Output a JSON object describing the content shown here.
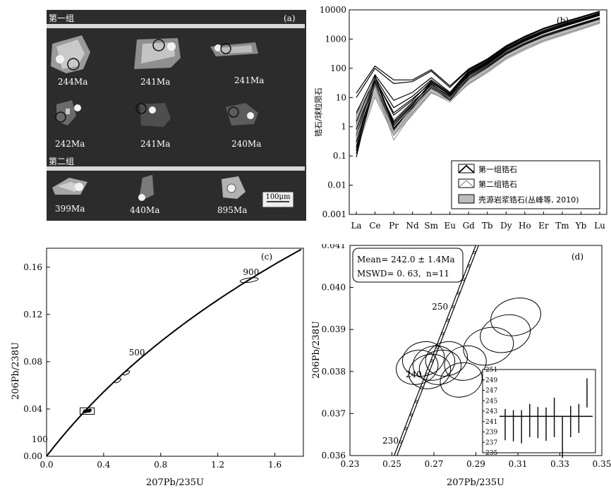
{
  "panel_a": {
    "label": "(a)",
    "group1_label": "第一组",
    "group2_label": "第二组",
    "ages_row1": [
      "244Ma",
      "241Ma",
      "241Ma"
    ],
    "ages_row2": [
      "242Ma",
      "241Ma",
      "240Ma"
    ],
    "ages_row3": [
      "399Ma",
      "440Ma",
      "895Ma"
    ],
    "scale_bar": "100μm",
    "colors": {
      "background": "#2c2c2c",
      "crystal": "#b8b8b8",
      "separator": "#d9d9d9"
    }
  },
  "chart_data": [
    {
      "panel": "(b)",
      "type": "line",
      "title": "",
      "xlabel": "",
      "ylabel": "锆石/球粒陨石",
      "log_y": true,
      "ylim": [
        0.001,
        10000
      ],
      "y_ticks": [
        "0.001",
        "0.01",
        "0.1",
        "1",
        "10",
        "100",
        "1000",
        "10000"
      ],
      "categories": [
        "La",
        "Ce",
        "Pr",
        "Nd",
        "Sm",
        "Eu",
        "Gd",
        "Tb",
        "Dy",
        "Ho",
        "Er",
        "Tm",
        "Yb",
        "Lu"
      ],
      "legend": [
        "第一组锆石",
        "第二组锆石",
        "壳源岩浆锆石(丛峰等, 2010)"
      ],
      "legend_position": "bottom-right",
      "series": [
        {
          "group": 1,
          "values": [
            0.09,
            48,
            0.9,
            4.5,
            28,
            11,
            55,
            130,
            360,
            750,
            1400,
            2200,
            3500,
            5500
          ]
        },
        {
          "group": 1,
          "values": [
            0.15,
            55,
            1.1,
            5.5,
            34,
            12,
            65,
            150,
            420,
            900,
            1700,
            2700,
            4300,
            6800
          ]
        },
        {
          "group": 1,
          "values": [
            0.2,
            40,
            1.3,
            6,
            30,
            10,
            60,
            140,
            400,
            850,
            1600,
            2600,
            4100,
            6500
          ]
        },
        {
          "group": 1,
          "values": [
            0.5,
            45,
            2.5,
            8,
            36,
            13,
            70,
            165,
            460,
            980,
            1850,
            3000,
            4700,
            7400
          ]
        },
        {
          "group": 1,
          "values": [
            1.5,
            50,
            4.5,
            11,
            40,
            14,
            75,
            175,
            500,
            1050,
            2000,
            3200,
            5000,
            7800
          ]
        },
        {
          "group": 1,
          "values": [
            3,
            60,
            8,
            15,
            48,
            15,
            82,
            190,
            540,
            1150,
            2200,
            3500,
            5500,
            8500
          ]
        },
        {
          "group": 1,
          "values": [
            10,
            100,
            30,
            35,
            80,
            22,
            90,
            200,
            560,
            1200,
            2250,
            3600,
            5600,
            8600
          ]
        },
        {
          "group": 1,
          "values": [
            14,
            120,
            40,
            40,
            90,
            25,
            95,
            210,
            590,
            1250,
            2350,
            3750,
            5800,
            9000
          ]
        },
        {
          "group": 1,
          "values": [
            0.3,
            35,
            1.5,
            7,
            25,
            9,
            50,
            120,
            330,
            700,
            1300,
            2100,
            3300,
            5200
          ]
        },
        {
          "group": 1,
          "values": [
            0.12,
            30,
            0.8,
            5,
            22,
            8,
            45,
            110,
            310,
            650,
            1200,
            1950,
            3100,
            4900
          ]
        },
        {
          "group": 1,
          "values": [
            0.8,
            42,
            3,
            9,
            33,
            12,
            68,
            160,
            450,
            950,
            1800,
            2900,
            4600,
            7200
          ]
        },
        {
          "group": 2,
          "values": [
            0.5,
            25,
            0.35,
            3,
            15,
            7,
            30,
            80,
            230,
            480,
            900,
            1450,
            2300,
            3800
          ]
        },
        {
          "group": 2,
          "values": [
            1.2,
            30,
            0.5,
            4,
            20,
            9,
            40,
            100,
            290,
            620,
            1150,
            1850,
            2950,
            4700
          ]
        },
        {
          "group": 2,
          "values": [
            2.5,
            45,
            0.7,
            5,
            26,
            10,
            50,
            125,
            350,
            740,
            1400,
            2250,
            3600,
            5600
          ]
        }
      ],
      "shaded_range": {
        "low": [
          0.15,
          10,
          0.5,
          2.5,
          14,
          8,
          28,
          70,
          200,
          420,
          800,
          1300,
          2100,
          3400
        ],
        "high": [
          3,
          30,
          1.8,
          7,
          24,
          11,
          42,
          105,
          300,
          640,
          1200,
          1950,
          3100,
          5000
        ]
      }
    },
    {
      "panel": "(c)",
      "type": "scatter",
      "title": "",
      "xlabel": "207Pb/235U",
      "ylabel": "206Pb/238U",
      "xlim": [
        0.0,
        1.8
      ],
      "ylim": [
        0.0,
        0.176
      ],
      "x_ticks": [
        "0.0",
        "0.4",
        "0.8",
        "1.2",
        "1.6"
      ],
      "y_ticks": [
        "0.00",
        "0.04",
        "0.08",
        "0.12",
        "0.16"
      ],
      "concordia_labels": [
        "100",
        "500",
        "900"
      ],
      "ellipses": [
        {
          "x": 0.27,
          "y": 0.0381
        },
        {
          "x": 0.28,
          "y": 0.0383
        },
        {
          "x": 0.3,
          "y": 0.0386
        },
        {
          "x": 0.5,
          "y": 0.064
        },
        {
          "x": 0.56,
          "y": 0.0705
        },
        {
          "x": 1.42,
          "y": 0.149
        }
      ],
      "zoom_box": {
        "x": [
          0.235,
          0.335
        ],
        "y": [
          0.0355,
          0.041
        ]
      }
    },
    {
      "panel": "(d)",
      "type": "scatter",
      "title": "",
      "xlabel": "207Pb/235U",
      "ylabel": "206Pb/238U",
      "xlim": [
        0.23,
        0.35
      ],
      "ylim": [
        0.036,
        0.041
      ],
      "x_ticks": [
        "0.23",
        "0.25",
        "0.27",
        "0.29",
        "0.31",
        "0.33",
        "0.35"
      ],
      "y_ticks": [
        "0.036",
        "0.037",
        "0.038",
        "0.039",
        "0.040",
        "0.041"
      ],
      "concordia_labels": [
        "230",
        "240",
        "250"
      ],
      "stats": {
        "mean": "Mean= 242.0 ± 1.4Ma",
        "mswd": "MSWD= 0. 63,",
        "n": "n=11"
      },
      "ellipses": [
        {
          "x": 0.262,
          "y": 0.0381
        },
        {
          "x": 0.265,
          "y": 0.0383
        },
        {
          "x": 0.268,
          "y": 0.038
        },
        {
          "x": 0.27,
          "y": 0.0382
        },
        {
          "x": 0.273,
          "y": 0.0381
        },
        {
          "x": 0.276,
          "y": 0.0383
        },
        {
          "x": 0.285,
          "y": 0.0382
        },
        {
          "x": 0.283,
          "y": 0.0378
        },
        {
          "x": 0.296,
          "y": 0.0386
        },
        {
          "x": 0.304,
          "y": 0.0389
        },
        {
          "x": 0.309,
          "y": 0.0393
        }
      ],
      "inset": {
        "ylim": [
          235,
          251
        ],
        "y_ticks": [
          "251",
          "249",
          "247",
          "245",
          "243",
          "241",
          "239",
          "237",
          "235"
        ],
        "mean": 242.0,
        "points": [
          {
            "age": 240.4,
            "err": 3.0
          },
          {
            "age": 240.2,
            "err": 3.0
          },
          {
            "age": 240.0,
            "err": 3.2
          },
          {
            "age": 241.2,
            "err": 3.2
          },
          {
            "age": 240.8,
            "err": 3.0
          },
          {
            "age": 240.5,
            "err": 3.2
          },
          {
            "age": 241.8,
            "err": 3.8
          },
          {
            "age": 238.0,
            "err": 4.0
          },
          {
            "age": 241.0,
            "err": 3.0
          },
          {
            "age": 241.6,
            "err": 2.8
          },
          {
            "age": 246.5,
            "err": 2.8
          }
        ]
      }
    }
  ]
}
